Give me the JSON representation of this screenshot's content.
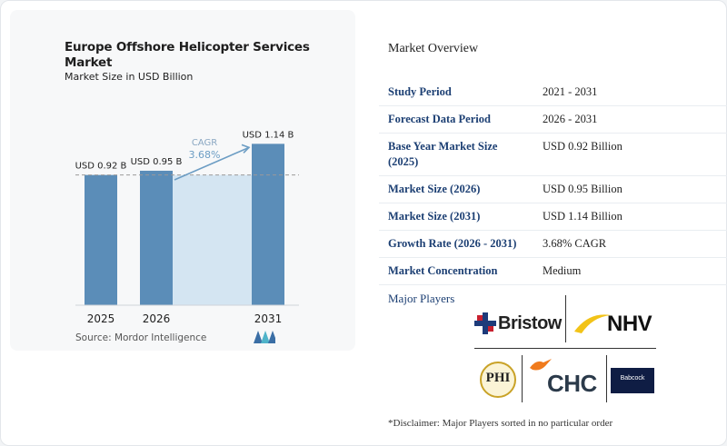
{
  "chart": {
    "title": "Europe Offshore Helicopter Services Market",
    "subtitle": "Market Size in USD Billion",
    "source": "Source: Mordor Intelligence"
  },
  "chart_data": {
    "type": "bar",
    "title": "Europe Offshore Helicopter Services Market",
    "subtitle": "Market Size in USD Billion",
    "categories": [
      "2025",
      "2026",
      "2031"
    ],
    "values": [
      0.92,
      0.95,
      1.14
    ],
    "data_labels": [
      "USD 0.92 B",
      "USD 0.95 B",
      "USD 1.14 B"
    ],
    "ylim": [
      0,
      1.2
    ],
    "grid": false,
    "reference_line_value": 0.92,
    "annotation": {
      "label": "CAGR",
      "value": "3.68%"
    },
    "colors": {
      "bar": "#5b8db8",
      "shade": "#d4e5f2",
      "cagr": "#6c9dc4"
    }
  },
  "overview": {
    "title": "Market Overview",
    "rows": [
      {
        "key": "Study Period",
        "value": "2021 - 2031"
      },
      {
        "key": "Forecast Data Period",
        "value": "2026 - 2031"
      },
      {
        "key": "Base Year Market Size (2025)",
        "value": "USD 0.92 Billion"
      },
      {
        "key": "Market Size (2026)",
        "value": "USD 0.95 Billion"
      },
      {
        "key": "Market Size (2031)",
        "value": "USD 1.14 Billion"
      },
      {
        "key": "Growth Rate (2026 - 2031)",
        "value": "3.68% CAGR"
      },
      {
        "key": "Market Concentration",
        "value": "Medium"
      }
    ]
  },
  "players": {
    "title": "Major Players",
    "logos": [
      "Bristow",
      "NHV",
      "PHI",
      "CHC",
      "Babcock"
    ],
    "disclaimer": "*Disclaimer: Major Players sorted in no particular order"
  }
}
